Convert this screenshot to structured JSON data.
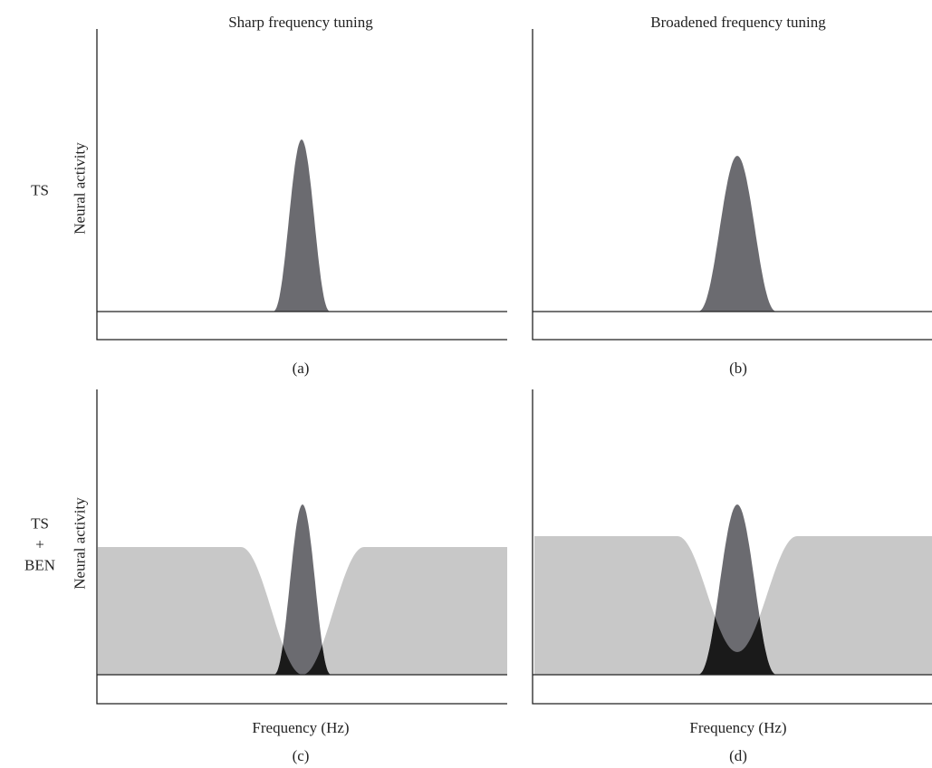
{
  "columns": {
    "sharp_title": "Sharp frequency tuning",
    "broad_title": "Broadened frequency tuning"
  },
  "rows": {
    "ts_label": "TS",
    "ts_ben_label": [
      "TS",
      "+",
      "BEN"
    ]
  },
  "axes": {
    "y_label": "Neural activity",
    "x_label": "Frequency (Hz)"
  },
  "panels": [
    {
      "id": "a",
      "label": "(a)",
      "tuning": "sharp",
      "noise": false
    },
    {
      "id": "b",
      "label": "(b)",
      "tuning": "broad",
      "noise": false
    },
    {
      "id": "c",
      "label": "(c)",
      "tuning": "sharp",
      "noise": true
    },
    {
      "id": "d",
      "label": "(d)",
      "tuning": "broad",
      "noise": true
    }
  ],
  "colors": {
    "tuning_curve": "#6b6b70",
    "noise_band": "#c8c8c8",
    "overlap": "#1a1a1a",
    "axis": "#222222"
  }
}
